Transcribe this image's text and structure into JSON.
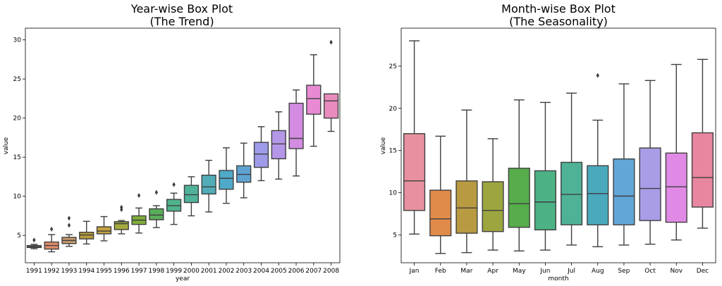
{
  "chart_data": [
    {
      "type": "box",
      "title": "Year-wise Box Plot",
      "subtitle": "(The Trend)",
      "xlabel": "year",
      "ylabel": "value",
      "ylim": [
        1.5,
        31.5
      ],
      "yticks": [
        5,
        10,
        15,
        20,
        25,
        30
      ],
      "categories": [
        "1991",
        "1992",
        "1993",
        "1994",
        "1995",
        "1996",
        "1997",
        "1998",
        "1999",
        "2000",
        "2001",
        "2002",
        "2003",
        "2004",
        "2005",
        "2006",
        "2007",
        "2008"
      ],
      "colors": [
        "#cd8d8e",
        "#e08b6a",
        "#c9996c",
        "#b79a3d",
        "#c4a340",
        "#a4aa3e",
        "#7fae3a",
        "#5aad5b",
        "#4fb38b",
        "#50b29a",
        "#50adb8",
        "#4fa9c8",
        "#5ea2d2",
        "#9e9ce8",
        "#b597e8",
        "#d38ce2",
        "#e98ad4",
        "#e88bbd"
      ],
      "boxes": [
        {
          "whislo": 3.3,
          "q1": 3.45,
          "med": 3.55,
          "q3": 3.7,
          "whishi": 3.85,
          "fliers": [
            4.4
          ]
        },
        {
          "whislo": 2.9,
          "q1": 3.25,
          "med": 3.7,
          "q3": 4.15,
          "whishi": 5.1,
          "fliers": [
            5.8
          ]
        },
        {
          "whislo": 3.6,
          "q1": 3.95,
          "med": 4.35,
          "q3": 4.75,
          "whishi": 5.1,
          "fliers": [
            6.3,
            7.2
          ]
        },
        {
          "whislo": 3.9,
          "q1": 4.55,
          "med": 5.05,
          "q3": 5.4,
          "whishi": 6.8,
          "fliers": []
        },
        {
          "whislo": 4.3,
          "q1": 5.2,
          "med": 5.55,
          "q3": 6.1,
          "whishi": 7.4,
          "fliers": []
        },
        {
          "whislo": 5.2,
          "q1": 5.75,
          "med": 6.5,
          "q3": 6.75,
          "whishi": 6.9,
          "fliers": [
            8.3,
            8.6
          ]
        },
        {
          "whislo": 5.3,
          "q1": 6.4,
          "med": 6.95,
          "q3": 7.5,
          "whishi": 8.5,
          "fliers": [
            10.1
          ]
        },
        {
          "whislo": 6.0,
          "q1": 7.0,
          "med": 7.6,
          "q3": 8.4,
          "whishi": 8.8,
          "fliers": [
            10.5
          ]
        },
        {
          "whislo": 6.4,
          "q1": 8.1,
          "med": 8.8,
          "q3": 9.6,
          "whishi": 10.4,
          "fliers": [
            11.5
          ]
        },
        {
          "whislo": 7.5,
          "q1": 9.2,
          "med": 10.2,
          "q3": 11.4,
          "whishi": 12.5,
          "fliers": []
        },
        {
          "whislo": 8.0,
          "q1": 10.3,
          "med": 11.2,
          "q3": 12.7,
          "whishi": 14.6,
          "fliers": []
        },
        {
          "whislo": 9.1,
          "q1": 10.9,
          "med": 12.3,
          "q3": 13.3,
          "whishi": 16.2,
          "fliers": []
        },
        {
          "whislo": 9.8,
          "q1": 11.8,
          "med": 12.8,
          "q3": 13.9,
          "whishi": 16.8,
          "fliers": []
        },
        {
          "whislo": 12.0,
          "q1": 13.7,
          "med": 15.4,
          "q3": 16.9,
          "whishi": 18.9,
          "fliers": []
        },
        {
          "whislo": 12.2,
          "q1": 14.8,
          "med": 16.7,
          "q3": 18.4,
          "whishi": 20.8,
          "fliers": []
        },
        {
          "whislo": 12.6,
          "q1": 16.1,
          "med": 17.4,
          "q3": 21.9,
          "whishi": 23.6,
          "fliers": []
        },
        {
          "whislo": 16.4,
          "q1": 20.5,
          "med": 22.5,
          "q3": 24.2,
          "whishi": 28.1,
          "fliers": []
        },
        {
          "whislo": 18.3,
          "q1": 20.0,
          "med": 22.2,
          "q3": 23.1,
          "whishi": 23.1,
          "fliers": [
            29.7
          ]
        }
      ]
    },
    {
      "type": "box",
      "title": "Month-wise Box Plot",
      "subtitle": "(The Seasonality)",
      "xlabel": "month",
      "ylabel": "value",
      "ylim": [
        1.7,
        29.5
      ],
      "yticks": [
        5,
        10,
        15,
        20,
        25
      ],
      "categories": [
        "Jan",
        "Feb",
        "Mar",
        "Apr",
        "May",
        "Jun",
        "Jul",
        "Aug",
        "Sep",
        "Oct",
        "Nov",
        "Dec"
      ],
      "colors": [
        "#e8909f",
        "#e08b4a",
        "#b89a41",
        "#9ca53f",
        "#56ad4a",
        "#4cb285",
        "#4fb296",
        "#4aa9bd",
        "#62a6d8",
        "#a99de8",
        "#e08ae5",
        "#e9869f"
      ],
      "boxes": [
        {
          "whislo": 5.1,
          "q1": 7.9,
          "med": 11.4,
          "q3": 17.0,
          "whishi": 28.0,
          "fliers": []
        },
        {
          "whislo": 2.8,
          "q1": 4.9,
          "med": 6.9,
          "q3": 10.3,
          "whishi": 16.7,
          "fliers": []
        },
        {
          "whislo": 2.9,
          "q1": 5.2,
          "med": 8.2,
          "q3": 11.4,
          "whishi": 19.8,
          "fliers": []
        },
        {
          "whislo": 3.2,
          "q1": 5.4,
          "med": 7.9,
          "q3": 11.3,
          "whishi": 16.4,
          "fliers": []
        },
        {
          "whislo": 3.1,
          "q1": 5.9,
          "med": 8.7,
          "q3": 12.9,
          "whishi": 21.0,
          "fliers": []
        },
        {
          "whislo": 3.2,
          "q1": 5.6,
          "med": 8.9,
          "q3": 12.6,
          "whishi": 20.7,
          "fliers": []
        },
        {
          "whislo": 3.8,
          "q1": 6.2,
          "med": 9.8,
          "q3": 13.6,
          "whishi": 21.8,
          "fliers": []
        },
        {
          "whislo": 3.6,
          "q1": 6.2,
          "med": 9.9,
          "q3": 13.2,
          "whishi": 18.6,
          "fliers": [
            23.9
          ]
        },
        {
          "whislo": 3.8,
          "q1": 6.2,
          "med": 9.6,
          "q3": 14.0,
          "whishi": 22.9,
          "fliers": []
        },
        {
          "whislo": 3.9,
          "q1": 6.7,
          "med": 10.5,
          "q3": 15.3,
          "whishi": 23.3,
          "fliers": []
        },
        {
          "whislo": 4.4,
          "q1": 6.5,
          "med": 10.7,
          "q3": 14.7,
          "whishi": 25.2,
          "fliers": []
        },
        {
          "whislo": 5.8,
          "q1": 8.3,
          "med": 11.8,
          "q3": 17.1,
          "whishi": 25.8,
          "fliers": []
        }
      ]
    }
  ]
}
